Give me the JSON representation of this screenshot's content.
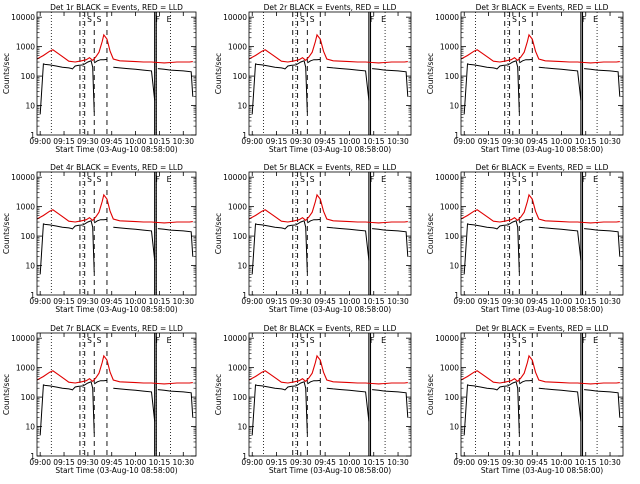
{
  "colors": {
    "events": "#000000",
    "lld": "#e00000",
    "axes": "#000000",
    "background": "#ffffff"
  },
  "figure": {
    "xlabel": "Start Time (03-Aug-10 08:58:00)",
    "ylabel": "Counts/sec"
  },
  "chart_data": {
    "type": "line",
    "shared": {
      "x_ticks": [
        "09:00",
        "09:15",
        "09:30",
        "09:45",
        "10:00",
        "10:15",
        "10:30"
      ],
      "x_range": [
        "08:58",
        "10:38"
      ],
      "y_ticks": [
        "1",
        "10",
        "100",
        "1000",
        "10000"
      ],
      "y_range": [
        1,
        15000
      ],
      "y_scale": "log",
      "grid": false,
      "event_markers": {
        "dotted": [
          "09:07",
          "09:27",
          "10:13",
          "10:22"
        ],
        "dashed": [
          "09:25",
          "09:28",
          "09:34",
          "09:42"
        ],
        "solid": [
          "10:12",
          "10:13"
        ],
        "labels": [
          {
            "text": "S",
            "x": "09:31"
          },
          {
            "text": "S",
            "x": "09:37"
          },
          {
            "text": "F",
            "x": "10:14"
          },
          {
            "text": "E",
            "x": "10:21"
          }
        ]
      },
      "lld": {
        "name": "LLD",
        "x": [
          "08:58",
          "09:02",
          "09:06",
          "09:08",
          "09:11",
          "09:15",
          "09:18",
          "09:22",
          "09:26",
          "09:29",
          "09:31",
          "09:33",
          "09:35",
          "09:37",
          "09:39",
          "09:40",
          "09:42",
          "09:44",
          "09:46",
          "09:50",
          "09:55",
          "10:00",
          "10:05",
          "10:10",
          "10:14",
          "10:18",
          "10:22",
          "10:26",
          "10:30",
          "10:34",
          "10:36"
        ],
        "values": [
          380,
          500,
          700,
          780,
          600,
          420,
          320,
          300,
          330,
          360,
          420,
          340,
          450,
          650,
          1500,
          2500,
          1800,
          700,
          380,
          330,
          320,
          310,
          300,
          300,
          290,
          280,
          290,
          300,
          300,
          300,
          310
        ]
      },
      "events": {
        "name": "Events",
        "segments": [
          {
            "x": [
              "09:00",
              "09:02",
              "09:03",
              "09:06",
              "09:10",
              "09:14",
              "09:18",
              "09:20"
            ],
            "values": [
              5,
              260,
              250,
              240,
              220,
              200,
              190,
              180
            ]
          },
          {
            "x": [
              "09:20",
              "09:22",
              "09:24",
              "09:27",
              "09:30",
              "09:32",
              "09:33",
              "09:34"
            ],
            "values": [
              170,
              220,
              230,
              240,
              300,
              330,
              200,
              6
            ]
          },
          {
            "x": [
              "09:34",
              "09:36",
              "09:38",
              "09:40",
              "09:42"
            ],
            "values": [
              280,
              330,
              360,
              360,
              370
            ]
          },
          {
            "x": [
              "09:46",
              "09:50",
              "09:55",
              "10:00",
              "10:05",
              "10:10",
              "10:12"
            ],
            "values": [
              200,
              190,
              180,
              170,
              160,
              150,
              15
            ]
          },
          {
            "x": [
              "10:14",
              "10:18",
              "10:22",
              "10:26",
              "10:30",
              "10:35",
              "10:36"
            ],
            "values": [
              180,
              170,
              160,
              155,
              150,
              140,
              20
            ]
          }
        ]
      }
    },
    "panels": [
      {
        "title": "Det 1r BLACK = Events, RED = LLD"
      },
      {
        "title": "Det 2r BLACK = Events, RED = LLD"
      },
      {
        "title": "Det 3r BLACK = Events, RED = LLD"
      },
      {
        "title": "Det 4r BLACK = Events, RED = LLD"
      },
      {
        "title": "Det 5r BLACK = Events, RED = LLD"
      },
      {
        "title": "Det 6r BLACK = Events, RED = LLD"
      },
      {
        "title": "Det 7r BLACK = Events, RED = LLD"
      },
      {
        "title": "Det 8r BLACK = Events, RED = LLD"
      },
      {
        "title": "Det 9r BLACK = Events, RED = LLD"
      }
    ]
  }
}
